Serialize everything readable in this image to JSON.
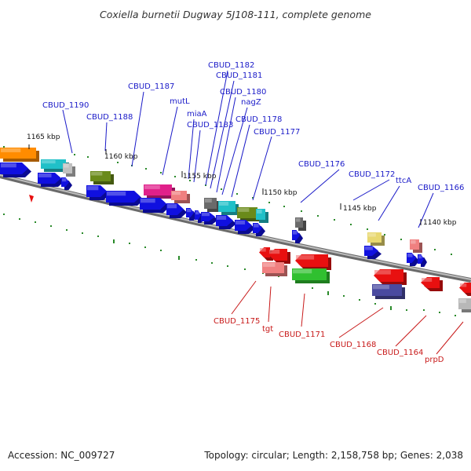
{
  "title": "Coxiella burnetii Dugway 5J108-111, complete genome",
  "footer": {
    "accession": "Accession: NC_009727",
    "summary": "Topology: circular; Length: 2,158,758 bp; Genes: 2,038"
  },
  "ticks": [
    "1165 kbp",
    "1160 kbp",
    "1155 kbp",
    "1150 kbp",
    "1145 kbp",
    "1140 kbp"
  ],
  "labels_upper": [
    "CBUD_1190",
    "CBUD_1188",
    "CBUD_1187",
    "mutL",
    "miaA",
    "CBUD_1183",
    "CBUD_1182",
    "CBUD_1181",
    "CBUD_1180",
    "nagZ",
    "CBUD_1178",
    "CBUD_1177",
    "CBUD_1176",
    "CBUD_1172",
    "ttcA",
    "CBUD_1166"
  ],
  "labels_lower": [
    "CBUD_1175",
    "tgt",
    "CBUD_1171",
    "CBUD_1168",
    "CBUD_1164",
    "prpD"
  ],
  "colors": {
    "backbone": "#888888",
    "forward_cds": "#1010e0",
    "reverse_cds": "#e81010",
    "upper_label": "#1a1ac8",
    "lower_label": "#c81a1a",
    "gc_ticks": "#2a8a2a"
  }
}
